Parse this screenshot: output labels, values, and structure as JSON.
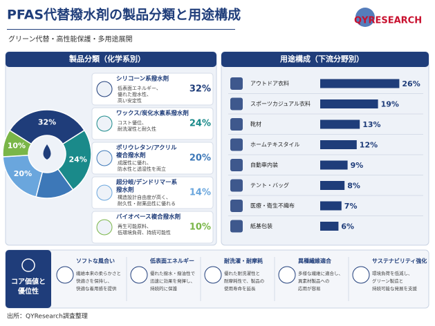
{
  "header": {
    "title": "PFAS代替撥水剤の製品分類と用途構成",
    "subtitle": "グリーン代替・高性能保護・多用途展開",
    "logo": "QYRESEARCH"
  },
  "chart_data": [
    {
      "type": "pie",
      "title": "製品分類（化学系別）",
      "values": [
        32,
        24,
        14,
        20,
        10
      ],
      "value_labels": [
        "32%",
        "24%",
        null,
        "20%",
        "10%"
      ],
      "colors": [
        "#1f3d7a",
        "#1a8a8a",
        "#3d78b8",
        "#6aa6dd",
        "#7ab648"
      ]
    },
    {
      "type": "bar",
      "title": "用途構成（下流分野別）",
      "categories": [
        "アウトドア衣料",
        "スポーツカジュアル衣料",
        "靴材",
        "ホームテキスタイル",
        "自動車内装",
        "テント・バッグ",
        "医療・衛生不織布",
        "紙基包装"
      ],
      "values": [
        26,
        19,
        13,
        12,
        9,
        8,
        7,
        6
      ],
      "value_labels": [
        "26%",
        "19%",
        "13%",
        "12%",
        "9%",
        "8%",
        "7%",
        "6%"
      ],
      "color": "#1f3d7a",
      "xlim": [
        0,
        30
      ]
    }
  ],
  "products": [
    {
      "name": [
        "シリコーン系撥水剤"
      ],
      "desc": [
        "低表面エネルギー、",
        "優れた撥水性、",
        "高い安定性"
      ],
      "share": "32%"
    },
    {
      "name": [
        "ワックス/炭化水素系撥水剤"
      ],
      "desc": [
        "コスト優位、",
        "耐洗濯性と耐久性"
      ],
      "share": "24%"
    },
    {
      "name": [
        "ポリウレタン/アクリル",
        "複合撥水剤"
      ],
      "desc": [
        "成膜性に優れ、",
        "防水性と透湿性を両立"
      ],
      "share": "20%"
    },
    {
      "name": [
        "超分岐/デンドリマー系",
        "撥水剤"
      ],
      "desc": [
        "構造設計自由度が高く、",
        "耐久性・耐薬品性に優れる"
      ],
      "share": "14%"
    },
    {
      "name": [
        "バイオベース複合撥水剤"
      ],
      "desc": [
        "再生可能原料、",
        "低環境負荷、持続可能性"
      ],
      "share": "10%"
    }
  ],
  "core": {
    "title": [
      "コア価値と",
      "優位性"
    ],
    "items": [
      {
        "title": "ソフトな風合い",
        "desc": [
          "繊維本来の柔らかさと",
          "快適さを保持し、",
          "快適な着用感を提供"
        ]
      },
      {
        "title": "低表面エネルギー",
        "desc": [
          "優れた撥水・撥油性で",
          "迅速に効果を発揮し、",
          "持続的に保護"
        ]
      },
      {
        "title": "耐洗濯・耐摩耗",
        "desc": [
          "優れた耐洗濯性と",
          "耐摩耗性で、製品の",
          "使用寿命を延長"
        ]
      },
      {
        "title": "異種繊維適合",
        "desc": [
          "多様な繊維に適合し、",
          "異素材製品への",
          "応用が容易"
        ]
      },
      {
        "title": "サステナビリティ強化",
        "desc": [
          "環境負荷を低減し、",
          "グリーン製造と",
          "持続可能な発展を支援"
        ]
      }
    ]
  },
  "source": "出所：QYResearch調査整理"
}
